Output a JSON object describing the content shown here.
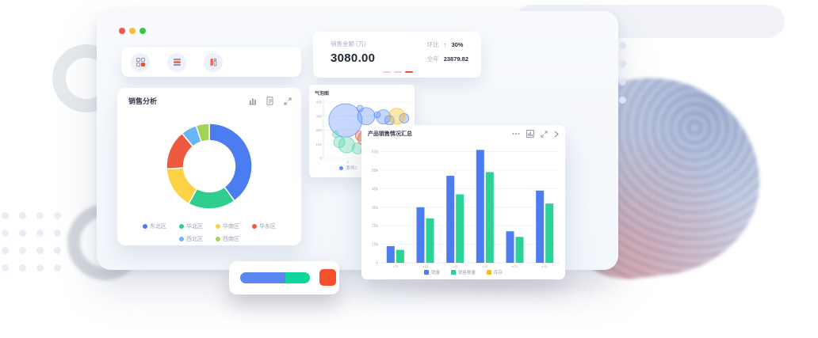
{
  "window": {
    "traffic_lights": [
      {
        "name": "close",
        "color": "#f6544c"
      },
      {
        "name": "minimize",
        "color": "#fdbd2e"
      },
      {
        "name": "maximize",
        "color": "#35c848"
      }
    ]
  },
  "toolbar": {
    "icons": [
      "grid-icon",
      "layers-icon",
      "chart-icon"
    ]
  },
  "stat_card": {
    "label": "销售金额 (万)",
    "value": "3080.00",
    "metrics": [
      {
        "label": "环比",
        "arrow": "↑",
        "value": "30%"
      },
      {
        "label": "全年",
        "arrow": "",
        "value": "23879.82"
      }
    ],
    "pagination": {
      "count": 3,
      "active_index": 2,
      "active_color": "#ee4b38",
      "inactive_color": "#f7cdc8"
    }
  },
  "sales_card": {
    "title": "销售分析",
    "icons": [
      "histogram-icon",
      "report-icon",
      "expand-icon"
    ]
  },
  "bubble_card": {
    "title": "气泡图",
    "icons": []
  },
  "bar_card": {
    "title": "产品销售情况汇总",
    "icons": [
      "more-icon",
      "chart-icon",
      "expand-icon",
      "chevron-right-icon"
    ]
  },
  "progress_card": {
    "segments": [
      {
        "color": "#5b87f2",
        "percent": 65
      },
      {
        "color": "#0fd69b",
        "percent": 35
      }
    ],
    "button_color": "#f4502e"
  },
  "chart_data": [
    {
      "type": "pie",
      "title": "销售分析",
      "categories": [
        "东北区",
        "华北区",
        "华南区",
        "华东区",
        "西北区",
        "西南区"
      ],
      "values": [
        40,
        18,
        16,
        15,
        6,
        5
      ],
      "colors": [
        "#4c7df0",
        "#2fce8e",
        "#fdd243",
        "#ec5b3f",
        "#67b7f7",
        "#a3d355"
      ],
      "inner_radius_ratio": 0.6,
      "legend_position": "bottom"
    },
    {
      "type": "scatter",
      "title": "气泡图",
      "xlabel": "",
      "ylabel": "",
      "xlim": [
        0,
        3.5
      ],
      "ylim": [
        0,
        400
      ],
      "x_ticks": [
        1,
        2,
        3
      ],
      "y_ticks": [
        400,
        300,
        200,
        100,
        0
      ],
      "series": [
        {
          "name": "系列1",
          "color": "#5b8ff9",
          "points": [
            [
              0.9,
              270,
              21
            ],
            [
              1.75,
              300,
              11
            ],
            [
              1.5,
              355,
              4
            ],
            [
              2.45,
              295,
              9
            ],
            [
              2.7,
              270,
              6
            ],
            [
              3.3,
              285,
              6
            ],
            [
              2.2,
              310,
              4
            ]
          ]
        },
        {
          "name": "系列2",
          "color": "#5ad8a6",
          "points": [
            [
              0.65,
              115,
              7
            ],
            [
              0.95,
              95,
              10
            ],
            [
              1.4,
              70,
              7
            ],
            [
              1.8,
              55,
              8
            ],
            [
              2.1,
              20,
              3
            ],
            [
              0.5,
              170,
              4
            ]
          ]
        },
        {
          "name": "系列3",
          "color": "#e8684a",
          "points": [
            [
              1.7,
              140,
              9
            ],
            [
              2.0,
              115,
              13
            ],
            [
              1.5,
              160,
              6
            ]
          ]
        },
        {
          "name": "系列4",
          "color": "#f6bd16",
          "points": [
            [
              3.0,
              300,
              10
            ]
          ]
        }
      ],
      "legend": [
        "系列1",
        "系列2"
      ],
      "legend_position": "bottom",
      "grid": true
    },
    {
      "type": "bar",
      "title": "产品销售情况汇总",
      "categories": [
        "1月",
        "2月",
        "3月",
        "4月",
        "5月",
        "6月"
      ],
      "series": [
        {
          "name": "销量",
          "color": "#4c7df0",
          "values": [
            9,
            30,
            47,
            61,
            17,
            39
          ]
        },
        {
          "name": "销售数量",
          "color": "#2bd296",
          "values": [
            7,
            24,
            37,
            49,
            14,
            32
          ]
        },
        {
          "name": "库存",
          "color": "#f6bd16",
          "values": []
        }
      ],
      "unit": "k",
      "ylim": [
        0,
        65
      ],
      "y_tick_values": [
        60,
        50,
        40,
        30,
        20,
        10,
        0
      ],
      "y_ticks": [
        "60k",
        "50k",
        "40k",
        "30k",
        "20k",
        "10k",
        "0"
      ],
      "legend_position": "bottom",
      "grid": true
    }
  ]
}
